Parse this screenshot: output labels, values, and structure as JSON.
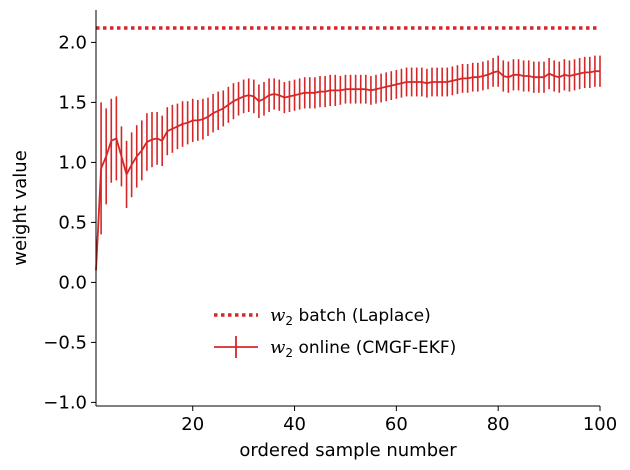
{
  "chart_data": {
    "type": "line",
    "xlabel": "ordered sample number",
    "ylabel": "weight value",
    "xlim": [
      1,
      100
    ],
    "ylim": [
      -1.03,
      2.27
    ],
    "xticks": [
      20,
      40,
      60,
      80,
      100
    ],
    "yticks": [
      -1.0,
      -0.5,
      0.0,
      0.5,
      1.0,
      1.5,
      2.0
    ],
    "ytick_labels": [
      "−1.0",
      "−0.5",
      "0.0",
      "0.5",
      "1.0",
      "1.5",
      "2.0"
    ],
    "grid": false,
    "legend_position": "lower-center",
    "color": "#d62728",
    "series": [
      {
        "name_symbol": "w",
        "name_subscript": "2",
        "name": " batch (Laplace)",
        "style": "dotted",
        "value": 2.12
      },
      {
        "name_symbol": "w",
        "name_subscript": "2",
        "name": " online (CMGF-EKF)",
        "style": "line-with-errorbars",
        "x": [
          1,
          2,
          3,
          4,
          5,
          6,
          7,
          8,
          9,
          10,
          11,
          12,
          13,
          14,
          15,
          16,
          17,
          18,
          19,
          20,
          21,
          22,
          23,
          24,
          25,
          26,
          27,
          28,
          29,
          30,
          31,
          32,
          33,
          34,
          35,
          36,
          37,
          38,
          39,
          40,
          41,
          42,
          43,
          44,
          45,
          46,
          47,
          48,
          49,
          50,
          51,
          52,
          53,
          54,
          55,
          56,
          57,
          58,
          59,
          60,
          61,
          62,
          63,
          64,
          65,
          66,
          67,
          68,
          69,
          70,
          71,
          72,
          73,
          74,
          75,
          76,
          77,
          78,
          79,
          80,
          81,
          82,
          83,
          84,
          85,
          86,
          87,
          88,
          89,
          90,
          91,
          92,
          93,
          94,
          95,
          96,
          97,
          98,
          99,
          100
        ],
        "y": [
          0.1,
          0.95,
          1.05,
          1.18,
          1.2,
          1.05,
          0.9,
          0.98,
          1.05,
          1.1,
          1.17,
          1.19,
          1.2,
          1.18,
          1.26,
          1.28,
          1.3,
          1.32,
          1.33,
          1.35,
          1.35,
          1.36,
          1.38,
          1.41,
          1.43,
          1.45,
          1.48,
          1.51,
          1.53,
          1.55,
          1.56,
          1.55,
          1.51,
          1.53,
          1.56,
          1.57,
          1.56,
          1.54,
          1.55,
          1.56,
          1.57,
          1.58,
          1.58,
          1.58,
          1.59,
          1.59,
          1.6,
          1.6,
          1.6,
          1.61,
          1.61,
          1.61,
          1.61,
          1.61,
          1.6,
          1.61,
          1.62,
          1.63,
          1.64,
          1.65,
          1.66,
          1.67,
          1.67,
          1.67,
          1.67,
          1.66,
          1.67,
          1.67,
          1.67,
          1.67,
          1.68,
          1.69,
          1.7,
          1.7,
          1.71,
          1.71,
          1.72,
          1.73,
          1.75,
          1.76,
          1.72,
          1.71,
          1.73,
          1.73,
          1.72,
          1.72,
          1.71,
          1.71,
          1.71,
          1.74,
          1.72,
          1.71,
          1.73,
          1.72,
          1.73,
          1.74,
          1.75,
          1.75,
          1.76,
          1.76
        ],
        "err": [
          0.0,
          0.55,
          0.4,
          0.35,
          0.35,
          0.25,
          0.28,
          0.27,
          0.26,
          0.25,
          0.24,
          0.23,
          0.22,
          0.21,
          0.2,
          0.2,
          0.19,
          0.19,
          0.18,
          0.18,
          0.17,
          0.17,
          0.16,
          0.16,
          0.16,
          0.15,
          0.15,
          0.15,
          0.14,
          0.14,
          0.14,
          0.14,
          0.14,
          0.14,
          0.14,
          0.13,
          0.13,
          0.13,
          0.13,
          0.13,
          0.13,
          0.13,
          0.13,
          0.13,
          0.13,
          0.13,
          0.13,
          0.13,
          0.12,
          0.12,
          0.12,
          0.12,
          0.12,
          0.12,
          0.12,
          0.12,
          0.12,
          0.12,
          0.12,
          0.12,
          0.12,
          0.12,
          0.12,
          0.12,
          0.12,
          0.12,
          0.12,
          0.12,
          0.12,
          0.12,
          0.12,
          0.12,
          0.12,
          0.12,
          0.12,
          0.12,
          0.12,
          0.12,
          0.12,
          0.13,
          0.13,
          0.13,
          0.13,
          0.13,
          0.13,
          0.13,
          0.13,
          0.13,
          0.13,
          0.13,
          0.13,
          0.13,
          0.13,
          0.13,
          0.13,
          0.13,
          0.13,
          0.13,
          0.13,
          0.13
        ]
      }
    ]
  }
}
